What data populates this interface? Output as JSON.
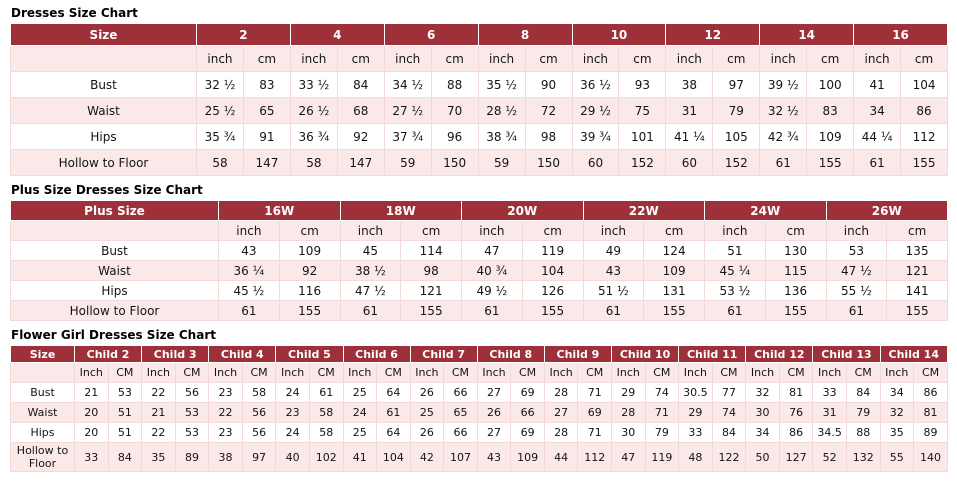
{
  "colors": {
    "header_bg": "#9d3039",
    "header_text": "#ffffff",
    "row_pink": "#fbe9e9",
    "row_white": "#ffffff",
    "border": "#f3dada",
    "text": "#141414"
  },
  "tables": [
    {
      "title": "Dresses Size Chart",
      "corner_label": "Size",
      "unit_labels": [
        "inch",
        "cm"
      ],
      "sizes": [
        "2",
        "4",
        "6",
        "8",
        "10",
        "12",
        "14",
        "16"
      ],
      "rows": [
        {
          "label": "Bust",
          "values": [
            "32 ½",
            "83",
            "33 ½",
            "84",
            "34 ½",
            "88",
            "35 ½",
            "90",
            "36 ½",
            "93",
            "38",
            "97",
            "39 ½",
            "100",
            "41",
            "104"
          ]
        },
        {
          "label": "Waist",
          "values": [
            "25 ½",
            "65",
            "26 ½",
            "68",
            "27 ½",
            "70",
            "28 ½",
            "72",
            "29 ½",
            "75",
            "31",
            "79",
            "32 ½",
            "83",
            "34",
            "86"
          ]
        },
        {
          "label": "Hips",
          "values": [
            "35 ¾",
            "91",
            "36 ¾",
            "92",
            "37 ¾",
            "96",
            "38 ¾",
            "98",
            "39 ¾",
            "101",
            "41 ¼",
            "105",
            "42 ¾",
            "109",
            "44 ¼",
            "112"
          ]
        },
        {
          "label": "Hollow to Floor",
          "values": [
            "58",
            "147",
            "58",
            "147",
            "59",
            "150",
            "59",
            "150",
            "60",
            "152",
            "60",
            "152",
            "61",
            "155",
            "61",
            "155"
          ]
        }
      ]
    },
    {
      "title": "Plus Size Dresses Size Chart",
      "corner_label": "Plus Size",
      "unit_labels": [
        "inch",
        "cm"
      ],
      "sizes": [
        "16W",
        "18W",
        "20W",
        "22W",
        "24W",
        "26W"
      ],
      "rows": [
        {
          "label": "Bust",
          "values": [
            "43",
            "109",
            "45",
            "114",
            "47",
            "119",
            "49",
            "124",
            "51",
            "130",
            "53",
            "135"
          ]
        },
        {
          "label": "Waist",
          "values": [
            "36 ¼",
            "92",
            "38 ½",
            "98",
            "40 ¾",
            "104",
            "43",
            "109",
            "45 ¼",
            "115",
            "47 ½",
            "121"
          ]
        },
        {
          "label": "Hips",
          "values": [
            "45 ½",
            "116",
            "47 ½",
            "121",
            "49 ½",
            "126",
            "51 ½",
            "131",
            "53 ½",
            "136",
            "55 ½",
            "141"
          ]
        },
        {
          "label": "Hollow to Floor",
          "values": [
            "61",
            "155",
            "61",
            "155",
            "61",
            "155",
            "61",
            "155",
            "61",
            "155",
            "61",
            "155"
          ]
        }
      ]
    },
    {
      "title": "Flower Girl Dresses Size Chart",
      "corner_label": "Size",
      "unit_labels": [
        "Inch",
        "CM"
      ],
      "sizes": [
        "Child 2",
        "Child 3",
        "Child 4",
        "Child 5",
        "Child 6",
        "Child 7",
        "Child 8",
        "Child 9",
        "Child 10",
        "Child 11",
        "Child 12",
        "Child 13",
        "Child 14"
      ],
      "rows": [
        {
          "label": "Bust",
          "values": [
            "21",
            "53",
            "22",
            "56",
            "23",
            "58",
            "24",
            "61",
            "25",
            "64",
            "26",
            "66",
            "27",
            "69",
            "28",
            "71",
            "29",
            "74",
            "30.5",
            "77",
            "32",
            "81",
            "33",
            "84",
            "34",
            "86"
          ]
        },
        {
          "label": "Waist",
          "values": [
            "20",
            "51",
            "21",
            "53",
            "22",
            "56",
            "23",
            "58",
            "24",
            "61",
            "25",
            "65",
            "26",
            "66",
            "27",
            "69",
            "28",
            "71",
            "29",
            "74",
            "30",
            "76",
            "31",
            "79",
            "32",
            "81"
          ]
        },
        {
          "label": "Hips",
          "values": [
            "20",
            "51",
            "22",
            "53",
            "23",
            "56",
            "24",
            "58",
            "25",
            "64",
            "26",
            "66",
            "27",
            "69",
            "28",
            "71",
            "30",
            "79",
            "33",
            "84",
            "34",
            "86",
            "34.5",
            "88",
            "35",
            "89"
          ]
        },
        {
          "label": "Hollow to Floor",
          "values": [
            "33",
            "84",
            "35",
            "89",
            "38",
            "97",
            "40",
            "102",
            "41",
            "104",
            "42",
            "107",
            "43",
            "109",
            "44",
            "112",
            "47",
            "119",
            "48",
            "122",
            "50",
            "127",
            "52",
            "132",
            "55",
            "140"
          ]
        }
      ]
    }
  ]
}
